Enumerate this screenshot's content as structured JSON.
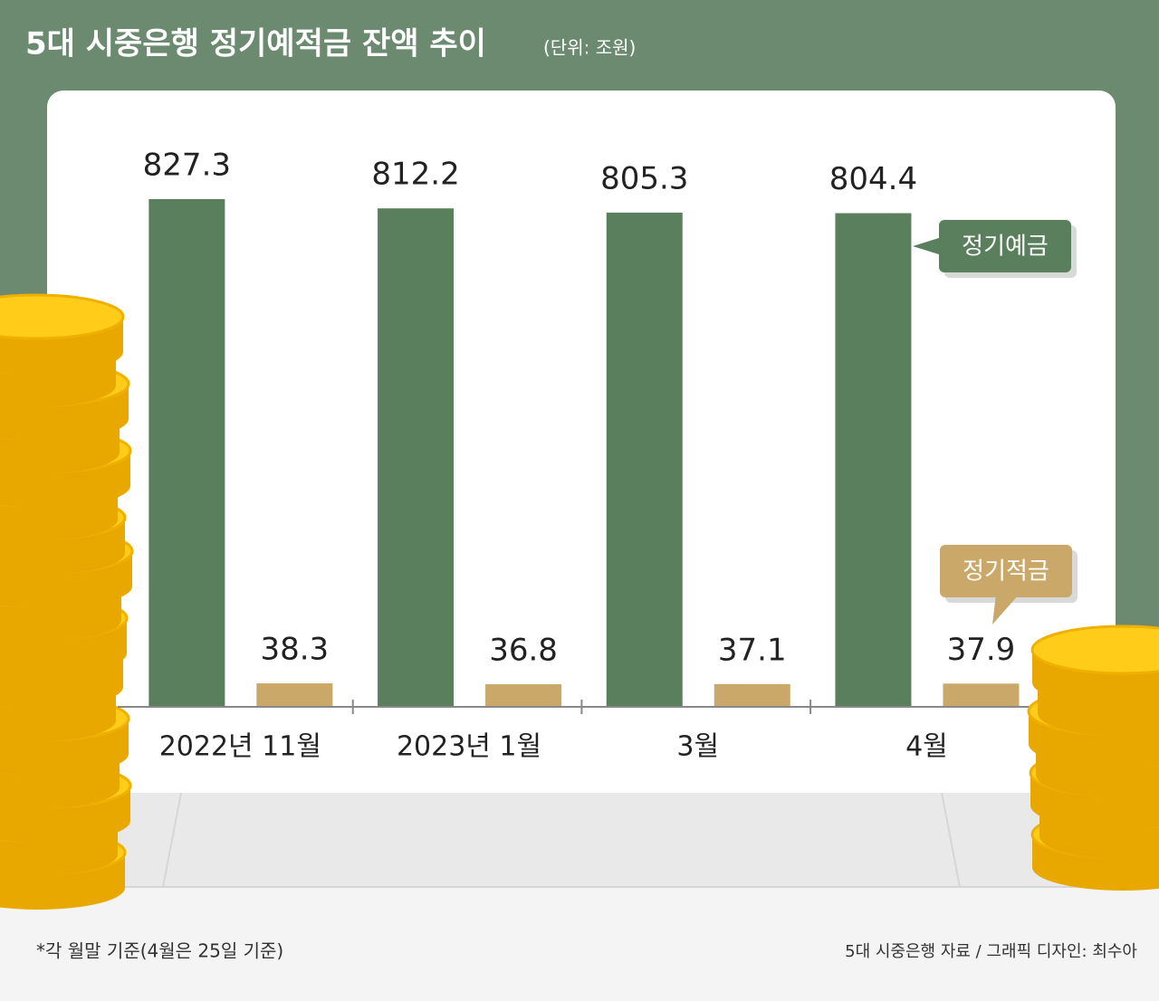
{
  "chart_data": {
    "type": "bar",
    "title": "5대 시중은행 정기예적금 잔액 추이",
    "subtitle": "(단위: 조원)",
    "categories": [
      "2022년 11월",
      "2023년 1월",
      "3월",
      "4월"
    ],
    "series": [
      {
        "name": "정기예금",
        "color": "#5a7f5c",
        "values": [
          827.3,
          812.2,
          805.3,
          804.4
        ]
      },
      {
        "name": "정기적금",
        "color": "#c9a86a",
        "values": [
          38.3,
          36.8,
          37.1,
          37.9
        ]
      }
    ],
    "ylim": [
      0,
      850
    ],
    "footnote": "*각 월말 기준(4월은 25일 기준)",
    "source": "5대 시중은행 자료 / 그래픽 디자인: 최수아"
  }
}
